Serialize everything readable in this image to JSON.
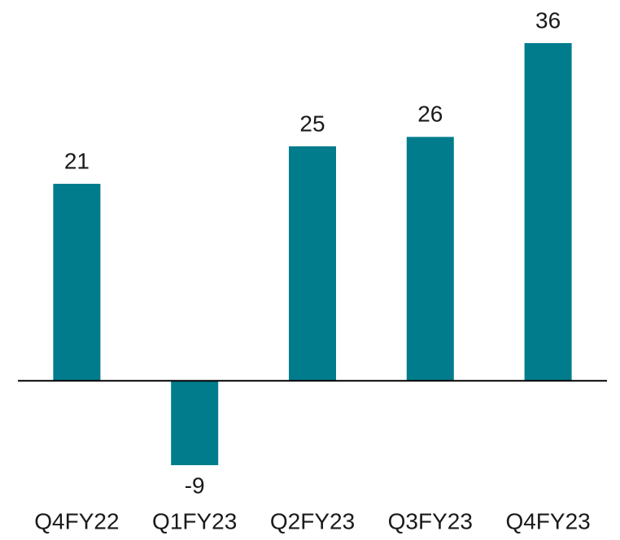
{
  "chart_data": {
    "type": "bar",
    "categories": [
      "Q4FY22",
      "Q1FY23",
      "Q2FY23",
      "Q3FY23",
      "Q4FY23"
    ],
    "values": [
      21,
      -9,
      25,
      26,
      36
    ],
    "color": "#007c8c"
  }
}
